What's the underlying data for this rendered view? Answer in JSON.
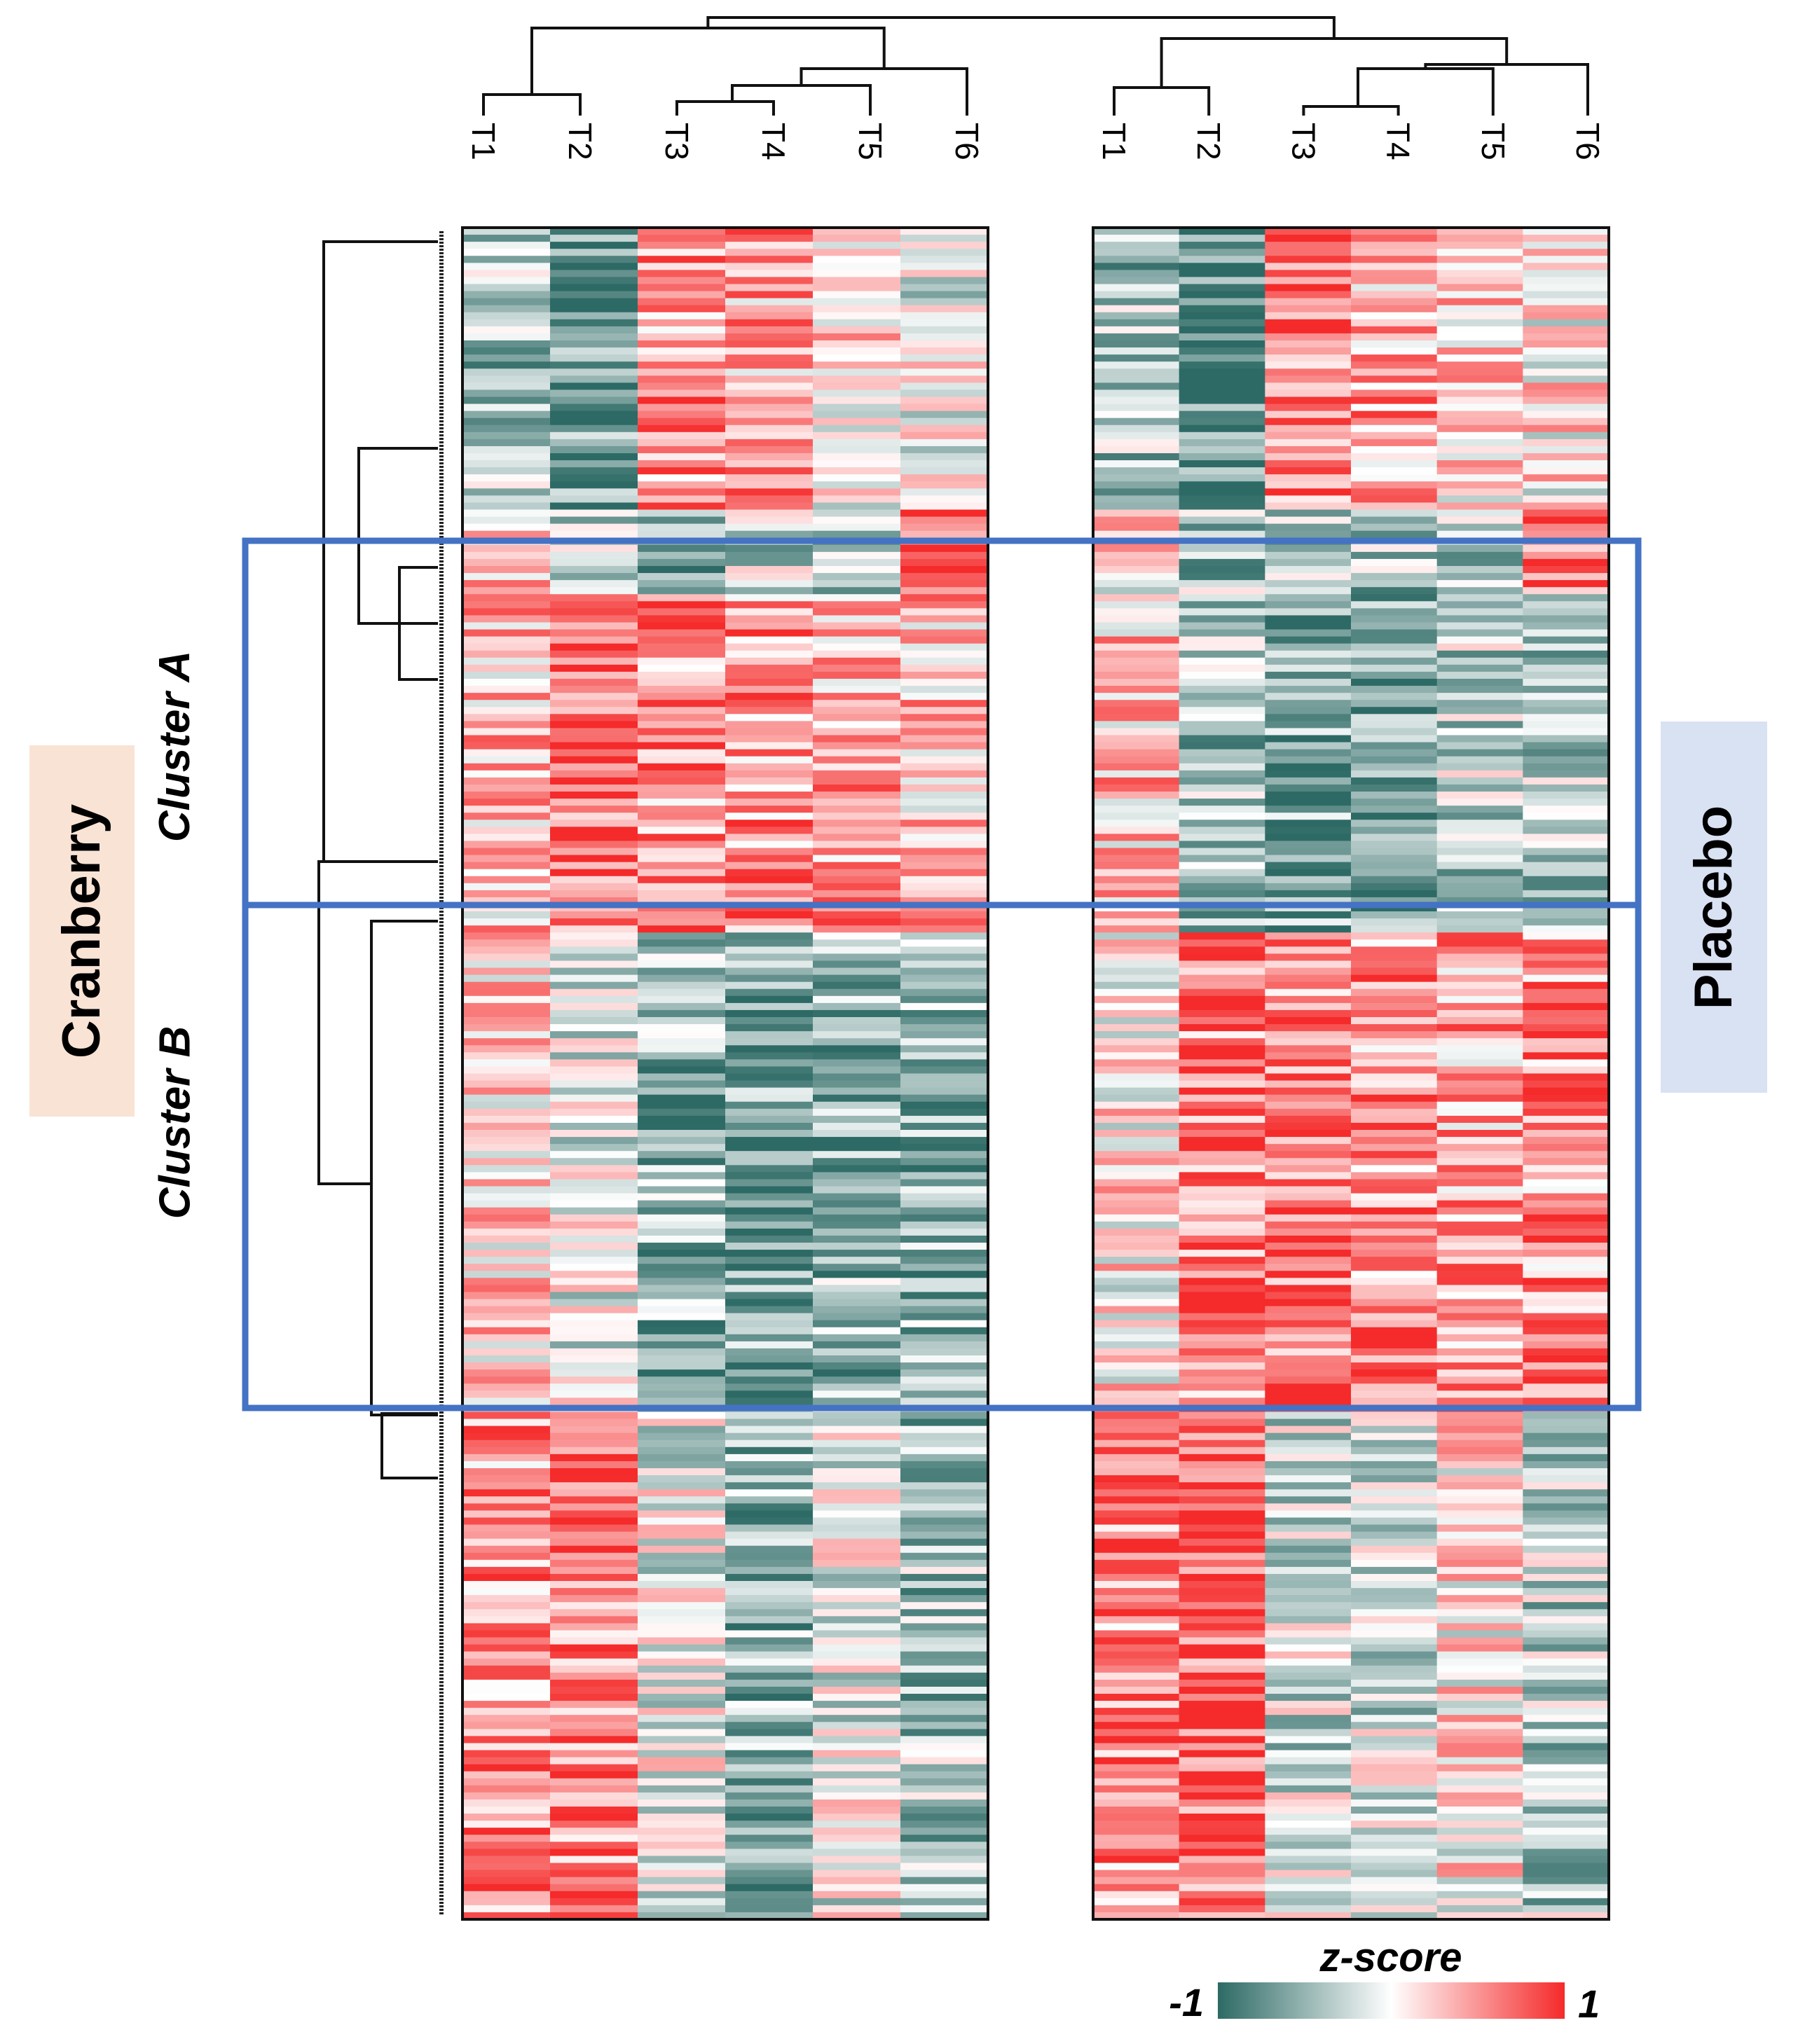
{
  "chart_data": {
    "type": "heatmap",
    "title": "",
    "row_group_label": "Cranberry",
    "panels": [
      {
        "name": "Cranberry",
        "columns": [
          "T1",
          "T2",
          "T3",
          "T4",
          "T5",
          "T6"
        ],
        "label_visible": false
      },
      {
        "name": "Placebo",
        "columns": [
          "T1",
          "T2",
          "T3",
          "T4",
          "T5",
          "T6"
        ],
        "label_visible": true
      }
    ],
    "clusters": [
      {
        "name": "Cluster A"
      },
      {
        "name": "Cluster B"
      }
    ],
    "row_blocks_approx": [
      {
        "rows": 40,
        "Cranberry": [
          -0.4,
          -0.7,
          0.5,
          0.4,
          0.1,
          -0.1
        ],
        "Placebo": [
          -0.4,
          -0.8,
          0.6,
          0.4,
          0.2,
          0.1
        ]
      },
      {
        "rows": 12,
        "Cranberry": [
          0.2,
          -0.3,
          -0.5,
          -0.3,
          -0.3,
          0.8
        ],
        "Placebo": [
          0.1,
          -0.4,
          -0.4,
          -0.4,
          -0.4,
          0.7
        ]
      },
      {
        "rows": 48,
        "Cranberry": [
          0.3,
          0.7,
          0.5,
          0.5,
          0.4,
          0.3
        ],
        "Placebo": [
          0.3,
          -0.4,
          -0.6,
          -0.6,
          -0.3,
          -0.4
        ]
      },
      {
        "rows": 68,
        "Cranberry": [
          0.2,
          -0.1,
          -0.5,
          -0.6,
          -0.5,
          -0.5
        ],
        "Placebo": [
          0.1,
          0.6,
          0.6,
          0.5,
          0.4,
          0.5
        ]
      },
      {
        "rows": 72,
        "Cranberry": [
          0.5,
          0.6,
          -0.1,
          -0.5,
          -0.1,
          -0.4
        ],
        "Placebo": [
          0.5,
          0.7,
          -0.2,
          -0.2,
          0.1,
          -0.3
        ]
      }
    ],
    "colorscale": {
      "title": "z-score",
      "min": -1,
      "max": 1,
      "min_label": "-1",
      "max_label": "1",
      "low_color": "#2d6a65",
      "mid_color": "#ffffff",
      "high_color": "#f52a2a"
    },
    "highlight_color": "#4472c4"
  }
}
